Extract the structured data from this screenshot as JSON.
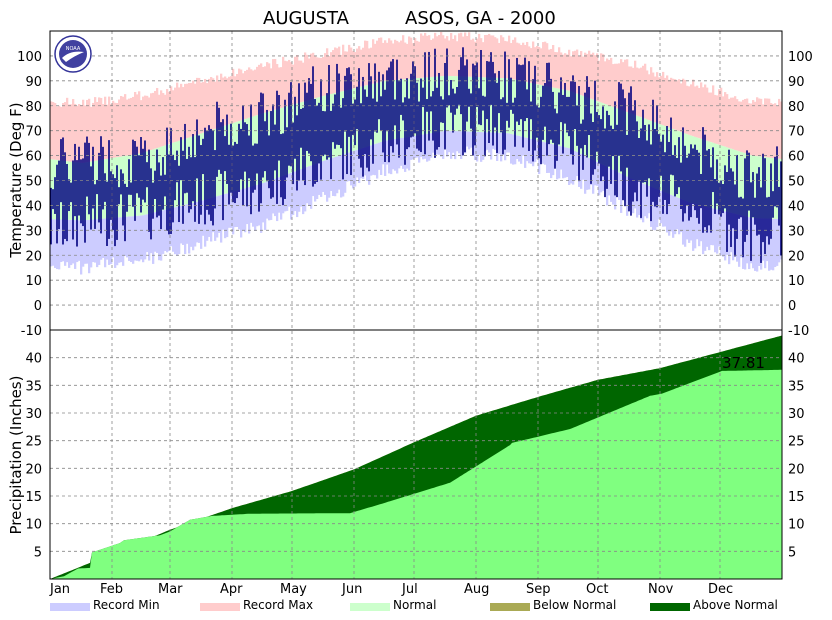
{
  "chart_data": [
    {
      "type": "bar",
      "title_station": "AUGUSTA",
      "title_network": "ASOS, GA - 2000",
      "ylabel": "Temperature (Deg F)",
      "ylim": [
        -10,
        110
      ],
      "yticks": [
        "-10",
        "0",
        "10",
        "20",
        "30",
        "40",
        "50",
        "60",
        "70",
        "80",
        "90",
        "100"
      ],
      "grid": true,
      "logo_text": "NOAA",
      "series": {
        "record_min": {
          "name": "Record Min",
          "months": [
            18,
            21,
            28,
            35,
            46,
            57,
            64,
            63,
            54,
            41,
            28,
            19
          ]
        },
        "record_max": {
          "name": "Record Max",
          "months": [
            79,
            82,
            88,
            94,
            99,
            104,
            106,
            105,
            100,
            95,
            87,
            80
          ]
        },
        "normal_high": {
          "name": "Normal",
          "months": [
            57,
            61,
            69,
            77,
            84,
            90,
            92,
            91,
            86,
            77,
            68,
            60
          ]
        },
        "normal_low": {
          "name": "Normal",
          "months": [
            34,
            36,
            42,
            49,
            58,
            66,
            70,
            69,
            63,
            51,
            41,
            35
          ]
        },
        "observed_high": {
          "months": [
            60,
            57,
            70,
            76,
            87,
            91,
            93,
            92,
            84,
            79,
            63,
            51
          ]
        },
        "observed_low": {
          "months": [
            33,
            36,
            42,
            47,
            58,
            65,
            71,
            70,
            63,
            47,
            39,
            27
          ]
        }
      },
      "colors": {
        "record_min": "#ccccff",
        "record_max": "#ffcccc",
        "normal": "#ccffcc",
        "observed": "#000080"
      }
    },
    {
      "type": "area",
      "ylabel": "Precipitation (Inches)",
      "ylim": [
        0,
        45
      ],
      "yticks": [
        "5",
        "10",
        "15",
        "20",
        "25",
        "30",
        "35",
        "40"
      ],
      "categories": [
        "Jan",
        "Feb",
        "Mar",
        "Apr",
        "May",
        "Jun",
        "Jul",
        "Aug",
        "Sep",
        "Oct",
        "Nov",
        "Dec"
      ],
      "grid": true,
      "total_label": "37.81",
      "normal_cumulative": {
        "day": [
          0,
          31,
          60,
          91,
          121,
          152,
          182,
          213,
          244,
          274,
          305,
          335,
          366
        ],
        "value": [
          0,
          4.5,
          8.9,
          12.8,
          15.9,
          19.8,
          24.7,
          29.5,
          32.9,
          36.0,
          38.1,
          41.0,
          44.0
        ]
      },
      "observed_cumulative": {
        "day": [
          0,
          7,
          14,
          20,
          21,
          35,
          37,
          43,
          55,
          60,
          70,
          81,
          100,
          150,
          165,
          200,
          230,
          231,
          260,
          300,
          306,
          336,
          366
        ],
        "value": [
          0,
          0.5,
          1.9,
          2.0,
          4.8,
          6.5,
          7.0,
          7.3,
          7.9,
          8.6,
          10.7,
          11.4,
          11.8,
          11.9,
          13.5,
          17.4,
          24.2,
          24.6,
          27.1,
          33.1,
          33.5,
          37.6,
          37.81
        ]
      },
      "colors": {
        "below_normal": "#aaaa55",
        "above_normal": "#006600",
        "observed": "#80ff80"
      }
    }
  ],
  "legend": [
    {
      "label": "Record Min",
      "color": "#ccccff"
    },
    {
      "label": "Record Max",
      "color": "#ffcccc"
    },
    {
      "label": "Normal",
      "color": "#ccffcc"
    },
    {
      "label": "Below Normal",
      "color": "#aaaa55"
    },
    {
      "label": "Above Normal",
      "color": "#006600"
    }
  ]
}
